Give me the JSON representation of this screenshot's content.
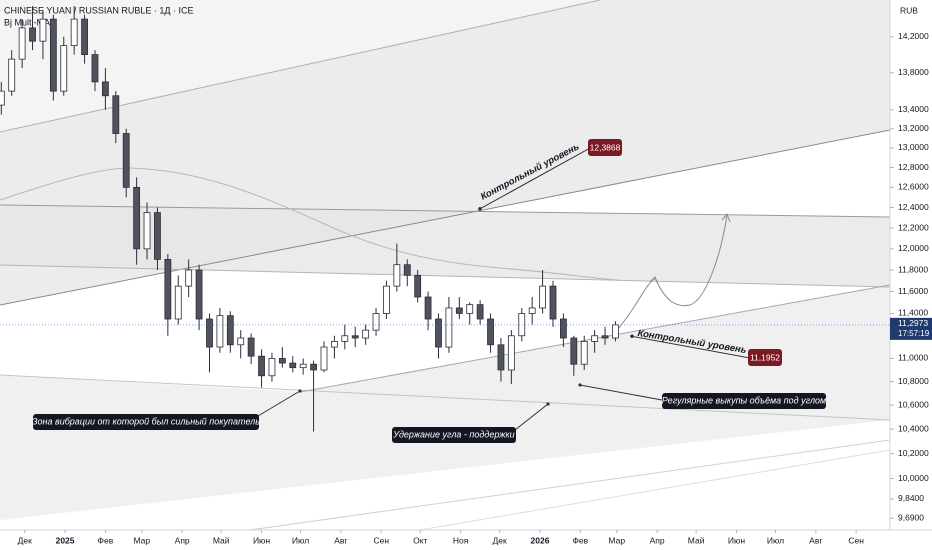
{
  "chart_data": {
    "type": "candlestick",
    "title": "CHINESE YUAN / RUSSIAN RUBLE · 1Д · ICE",
    "subtitle": "Bj Multi-MA",
    "y_axis_label": "RUB",
    "log_scale": true,
    "ylim": [
      9.6,
      14.62
    ],
    "yticks": [
      {
        "value": 14.2,
        "label": "14,2000"
      },
      {
        "value": 13.8,
        "label": "13,8000"
      },
      {
        "value": 13.4,
        "label": "13,4000"
      },
      {
        "value": 13.2,
        "label": "13,2000"
      },
      {
        "value": 13.0,
        "label": "13,0000"
      },
      {
        "value": 12.8,
        "label": "12,8000"
      },
      {
        "value": 12.6,
        "label": "12,6000"
      },
      {
        "value": 12.4,
        "label": "12,4000"
      },
      {
        "value": 12.2,
        "label": "12,2000"
      },
      {
        "value": 12.0,
        "label": "12,0000"
      },
      {
        "value": 11.8,
        "label": "11,8000"
      },
      {
        "value": 11.6,
        "label": "11,6000"
      },
      {
        "value": 11.4,
        "label": "11,4000"
      },
      {
        "value": 11.0,
        "label": "11,0000"
      },
      {
        "value": 10.8,
        "label": "10,8000"
      },
      {
        "value": 10.6,
        "label": "10,6000"
      },
      {
        "value": 10.4,
        "label": "10,4000"
      },
      {
        "value": 10.2,
        "label": "10,2000"
      },
      {
        "value": 10.0,
        "label": "10,0000"
      },
      {
        "value": 9.84,
        "label": "9,8400"
      },
      {
        "value": 9.69,
        "label": "9,6900"
      }
    ],
    "xlim": [
      -19,
      665
    ],
    "xticks": [
      {
        "value": 0,
        "label": "Дек"
      },
      {
        "value": 31,
        "label": "2025"
      },
      {
        "value": 62,
        "label": "Фев"
      },
      {
        "value": 90,
        "label": "Мар"
      },
      {
        "value": 121,
        "label": "Апр"
      },
      {
        "value": 151,
        "label": "Май"
      },
      {
        "value": 182,
        "label": "Июн"
      },
      {
        "value": 212,
        "label": "Июл"
      },
      {
        "value": 243,
        "label": "Авг"
      },
      {
        "value": 274,
        "label": "Сен"
      },
      {
        "value": 304,
        "label": "Окт"
      },
      {
        "value": 335,
        "label": "Ноя"
      },
      {
        "value": 365,
        "label": "Дек"
      },
      {
        "value": 396,
        "label": "2026"
      },
      {
        "value": 427,
        "label": "Фев"
      },
      {
        "value": 455,
        "label": "Мар"
      },
      {
        "value": 486,
        "label": "Апр"
      },
      {
        "value": 516,
        "label": "Май"
      },
      {
        "value": 547,
        "label": "Июн"
      },
      {
        "value": 577,
        "label": "Июл"
      },
      {
        "value": 608,
        "label": "Авг"
      },
      {
        "value": 639,
        "label": "Сен"
      }
    ],
    "up_color": "#ffffff",
    "down_color": "#50535e",
    "outline_color": "#2a2e39",
    "x": [
      -18,
      -10,
      -2,
      6,
      14,
      22,
      30,
      38,
      46,
      54,
      62,
      70,
      78,
      86,
      94,
      102,
      110,
      118,
      126,
      134,
      142,
      150,
      158,
      166,
      174,
      182,
      190,
      198,
      206,
      214,
      222,
      230,
      238,
      246,
      254,
      262,
      270,
      278,
      286,
      294,
      302,
      310,
      318,
      326,
      334,
      342,
      350,
      358,
      366,
      374,
      382,
      390,
      398,
      406,
      414,
      422,
      430,
      438,
      446,
      454
    ],
    "open": [
      13.45,
      13.6,
      13.95,
      14.3,
      14.15,
      14.4,
      13.6,
      14.1,
      14.4,
      14.0,
      13.7,
      13.55,
      13.15,
      12.6,
      12.0,
      12.35,
      11.9,
      11.35,
      11.65,
      11.8,
      11.35,
      11.1,
      11.38,
      11.12,
      11.18,
      11.02,
      10.85,
      11.0,
      10.96,
      10.92,
      10.95,
      10.9,
      11.1,
      11.15,
      11.2,
      11.18,
      11.25,
      11.4,
      11.65,
      11.85,
      11.75,
      11.55,
      11.35,
      11.1,
      11.45,
      11.4,
      11.48,
      11.35,
      11.12,
      10.9,
      11.2,
      11.4,
      11.45,
      11.65,
      11.35,
      11.18,
      10.95,
      11.15,
      11.2,
      11.18
    ],
    "high": [
      13.7,
      14.05,
      14.4,
      14.55,
      14.5,
      14.45,
      14.2,
      14.55,
      14.45,
      14.05,
      13.85,
      13.6,
      13.2,
      12.7,
      12.45,
      12.4,
      11.95,
      11.75,
      11.9,
      11.85,
      11.4,
      11.45,
      11.42,
      11.25,
      11.22,
      11.08,
      11.05,
      11.1,
      11.02,
      11.0,
      10.98,
      11.15,
      11.2,
      11.3,
      11.28,
      11.3,
      11.45,
      11.7,
      12.05,
      11.9,
      11.8,
      11.6,
      11.4,
      11.55,
      11.55,
      11.5,
      11.52,
      11.4,
      11.18,
      11.25,
      11.45,
      11.55,
      11.8,
      11.7,
      11.4,
      11.2,
      11.2,
      11.25,
      11.28,
      11.33
    ],
    "low": [
      13.35,
      13.55,
      13.85,
      14.05,
      13.95,
      13.5,
      13.55,
      14.0,
      13.9,
      13.6,
      13.4,
      13.05,
      12.5,
      11.85,
      11.9,
      11.8,
      11.2,
      11.3,
      11.55,
      11.25,
      10.88,
      11.05,
      11.05,
      11.0,
      10.95,
      10.75,
      10.8,
      10.92,
      10.88,
      10.86,
      10.38,
      10.88,
      11.0,
      11.08,
      11.1,
      11.12,
      11.2,
      11.35,
      11.6,
      11.65,
      11.5,
      11.25,
      11.0,
      11.05,
      11.35,
      11.3,
      11.3,
      11.05,
      10.8,
      10.78,
      11.15,
      11.3,
      11.4,
      11.28,
      11.1,
      10.85,
      10.9,
      11.05,
      11.12,
      11.15
    ],
    "close": [
      13.6,
      13.95,
      14.3,
      14.15,
      14.4,
      13.6,
      14.1,
      14.4,
      14.0,
      13.7,
      13.55,
      13.15,
      12.6,
      12.0,
      12.35,
      11.9,
      11.35,
      11.65,
      11.8,
      11.35,
      11.1,
      11.38,
      11.12,
      11.18,
      11.02,
      10.85,
      11.0,
      10.96,
      10.92,
      10.95,
      10.9,
      11.1,
      11.15,
      11.2,
      11.18,
      11.25,
      11.4,
      11.65,
      11.85,
      11.75,
      11.55,
      11.35,
      11.1,
      11.45,
      11.4,
      11.48,
      11.35,
      11.12,
      10.9,
      11.2,
      11.4,
      11.45,
      11.65,
      11.35,
      11.18,
      10.95,
      11.15,
      11.2,
      11.18,
      11.2973
    ],
    "last_price": {
      "value": 11.2973,
      "label": "11,2973"
    },
    "countdown": "17:57:19",
    "price_tags": [
      {
        "value": 12.3868,
        "label": "12,3868"
      },
      {
        "value": 11.1952,
        "label": "11,1952"
      }
    ],
    "annotations": [
      "Контрольный уровень",
      "Контрольный уровень",
      "Зона вибрации от которой был сильный покупатель",
      "Удержание угла - поддержки",
      "Регулярные выкупы объёма под углом"
    ]
  }
}
